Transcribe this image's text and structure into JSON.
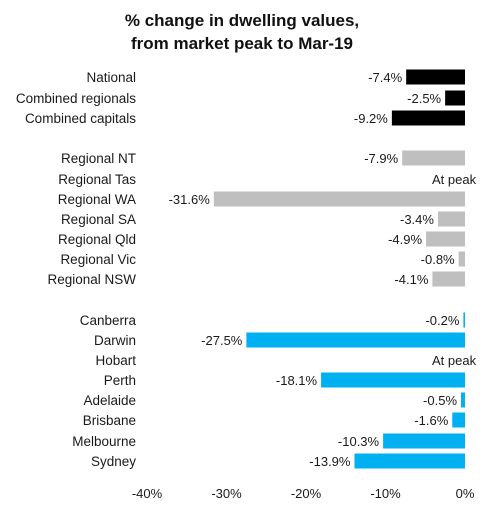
{
  "chart_data": {
    "type": "bar",
    "orientation": "horizontal",
    "title": "% change in dwelling values,\nfrom market peak to Mar-19",
    "xlim": [
      -40,
      0
    ],
    "x_ticks": [
      "-40%",
      "-30%",
      "-20%",
      "-10%",
      "0%"
    ],
    "grid": false,
    "legend": "none",
    "groups": [
      {
        "color": "#000000",
        "bars": [
          {
            "category": "National",
            "value": -7.4,
            "label": "-7.4%"
          },
          {
            "category": "Combined regionals",
            "value": -2.5,
            "label": "-2.5%"
          },
          {
            "category": "Combined capitals",
            "value": -9.2,
            "label": "-9.2%"
          }
        ]
      },
      {
        "color": "#bfbfbf",
        "bars": [
          {
            "category": "Regional NT",
            "value": -7.9,
            "label": "-7.9%"
          },
          {
            "category": "Regional Tas",
            "value": 0,
            "label": "At peak"
          },
          {
            "category": "Regional WA",
            "value": -31.6,
            "label": "-31.6%"
          },
          {
            "category": "Regional SA",
            "value": -3.4,
            "label": "-3.4%"
          },
          {
            "category": "Regional Qld",
            "value": -4.9,
            "label": "-4.9%"
          },
          {
            "category": "Regional Vic",
            "value": -0.8,
            "label": "-0.8%"
          },
          {
            "category": "Regional NSW",
            "value": -4.1,
            "label": "-4.1%"
          }
        ]
      },
      {
        "color": "#00b0f0",
        "bars": [
          {
            "category": "Canberra",
            "value": -0.2,
            "label": "-0.2%"
          },
          {
            "category": "Darwin",
            "value": -27.5,
            "label": "-27.5%"
          },
          {
            "category": "Hobart",
            "value": 0,
            "label": "At peak"
          },
          {
            "category": "Perth",
            "value": -18.1,
            "label": "-18.1%"
          },
          {
            "category": "Adelaide",
            "value": -0.5,
            "label": "-0.5%"
          },
          {
            "category": "Brisbane",
            "value": -1.6,
            "label": "-1.6%"
          },
          {
            "category": "Melbourne",
            "value": -10.3,
            "label": "-10.3%"
          },
          {
            "category": "Sydney",
            "value": -13.9,
            "label": "-13.9%"
          }
        ]
      }
    ]
  }
}
